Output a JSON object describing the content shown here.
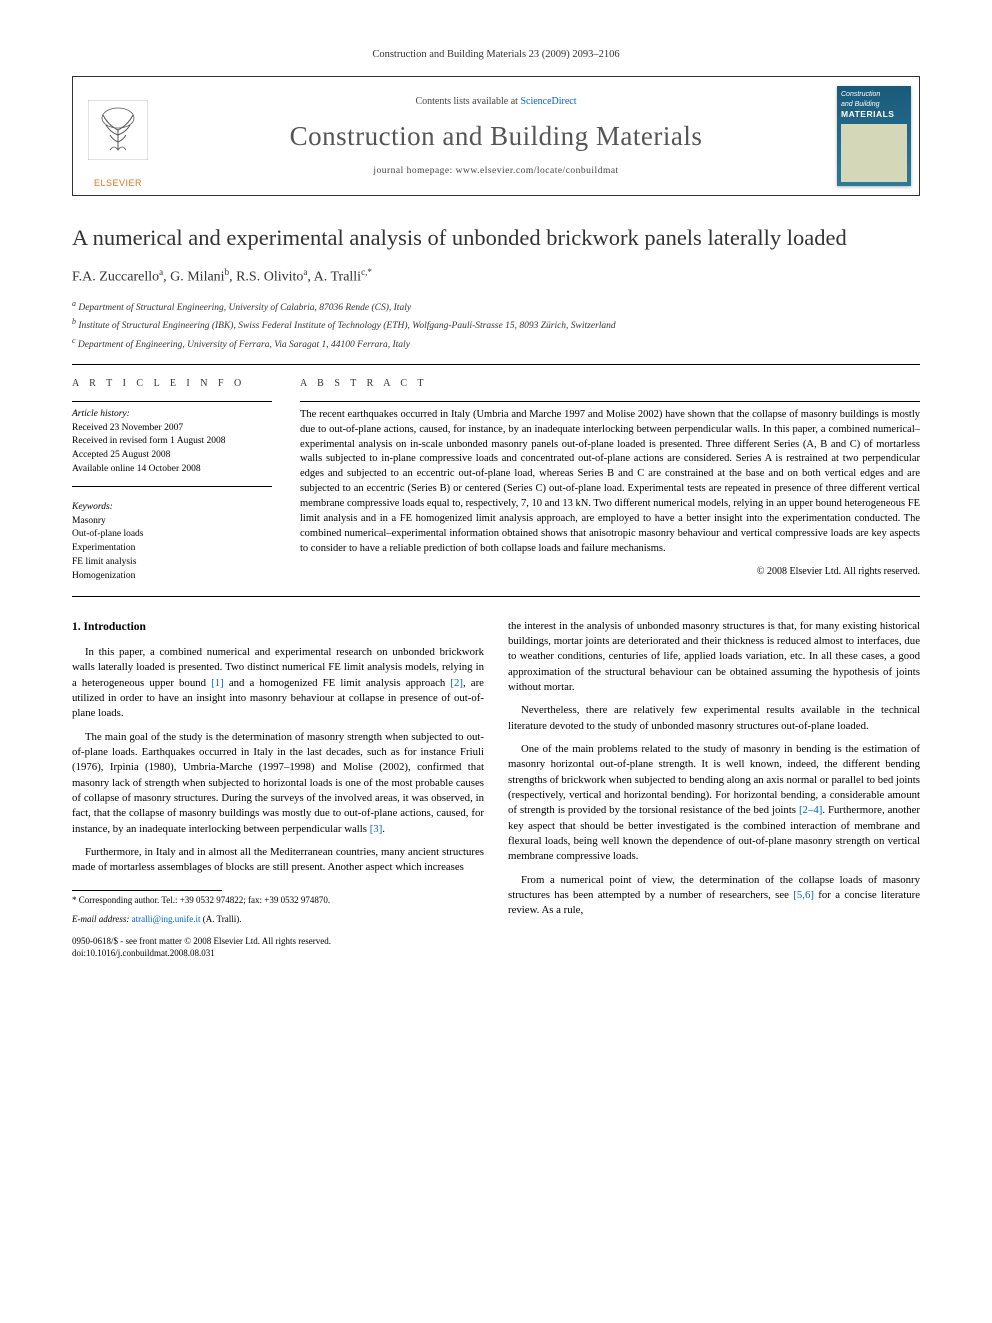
{
  "journal_ref": "Construction and Building Materials 23 (2009) 2093–2106",
  "header": {
    "contents_prefix": "Contents lists available at ",
    "contents_link": "ScienceDirect",
    "journal_title": "Construction and Building Materials",
    "homepage": "journal homepage: www.elsevier.com/locate/conbuildmat",
    "publisher_logo_text": "ELSEVIER",
    "cover": {
      "line1": "Construction",
      "line2": "and Building",
      "line3": "MATERIALS"
    }
  },
  "article": {
    "title": "A numerical and experimental analysis of unbonded brickwork panels laterally loaded",
    "authors_html": "F.A. Zuccarello",
    "authors": [
      {
        "name": "F.A. Zuccarello",
        "sup": "a"
      },
      {
        "name": "G. Milani",
        "sup": "b"
      },
      {
        "name": "R.S. Olivito",
        "sup": "a"
      },
      {
        "name": "A. Tralli",
        "sup": "c,*"
      }
    ],
    "affiliations": [
      "a Department of Structural Engineering, University of Calabria, 87036 Rende (CS), Italy",
      "b Institute of Structural Engineering (IBK), Swiss Federal Institute of Technology (ETH), Wolfgang-Pauli-Strasse 15, 8093 Zürich, Switzerland",
      "c Department of Engineering, University of Ferrara, Via Saragat 1, 44100 Ferrara, Italy"
    ]
  },
  "info": {
    "heading": "A R T I C L E   I N F O",
    "history_head": "Article history:",
    "history": [
      "Received 23 November 2007",
      "Received in revised form 1 August 2008",
      "Accepted 25 August 2008",
      "Available online 14 October 2008"
    ],
    "keywords_head": "Keywords:",
    "keywords": [
      "Masonry",
      "Out-of-plane loads",
      "Experimentation",
      "FE limit analysis",
      "Homogenization"
    ]
  },
  "abstract": {
    "heading": "A B S T R A C T",
    "text": "The recent earthquakes occurred in Italy (Umbria and Marche 1997 and Molise 2002) have shown that the collapse of masonry buildings is mostly due to out-of-plane actions, caused, for instance, by an inadequate interlocking between perpendicular walls. In this paper, a combined numerical–experimental analysis on in-scale unbonded masonry panels out-of-plane loaded is presented. Three different Series (A, B and C) of mortarless walls subjected to in-plane compressive loads and concentrated out-of-plane actions are considered. Series A is restrained at two perpendicular edges and subjected to an eccentric out-of-plane load, whereas Series B and C are constrained at the base and on both vertical edges and are subjected to an eccentric (Series B) or centered (Series C) out-of-plane load. Experimental tests are repeated in presence of three different vertical membrane compressive loads equal to, respectively, 7, 10 and 13 kN. Two different numerical models, relying in an upper bound heterogeneous FE limit analysis and in a FE homogenized limit analysis approach, are employed to have a better insight into the experimentation conducted. The combined numerical–experimental information obtained shows that anisotropic masonry behaviour and vertical compressive loads are key aspects to consider to have a reliable prediction of both collapse loads and failure mechanisms.",
    "copyright": "© 2008 Elsevier Ltd. All rights reserved."
  },
  "body": {
    "section_title": "1. Introduction",
    "p1": "In this paper, a combined numerical and experimental research on unbonded brickwork walls laterally loaded is presented. Two distinct numerical FE limit analysis models, relying in a heterogeneous upper bound [1] and a homogenized FE limit analysis approach [2], are utilized in order to have an insight into masonry behaviour at collapse in presence of out-of-plane loads.",
    "p2": "The main goal of the study is the determination of masonry strength when subjected to out-of-plane loads. Earthquakes occurred in Italy in the last decades, such as for instance Friuli (1976), Irpinia (1980), Umbria-Marche (1997–1998) and Molise (2002), confirmed that masonry lack of strength when subjected to horizontal loads is one of the most probable causes of collapse of masonry structures. During the surveys of the involved areas, it was observed, in fact, that the collapse of masonry buildings was mostly due to out-of-plane actions, caused, for instance, by an inadequate interlocking between perpendicular walls [3].",
    "p3": "Furthermore, in Italy and in almost all the Mediterranean countries, many ancient structures made of mortarless assemblages of blocks are still present. Another aspect which increases",
    "p4": "the interest in the analysis of unbonded masonry structures is that, for many existing historical buildings, mortar joints are deteriorated and their thickness is reduced almost to interfaces, due to weather conditions, centuries of life, applied loads variation, etc. In all these cases, a good approximation of the structural behaviour can be obtained assuming the hypothesis of joints without mortar.",
    "p5": "Nevertheless, there are relatively few experimental results available in the technical literature devoted to the study of unbonded masonry structures out-of-plane loaded.",
    "p6": "One of the main problems related to the study of masonry in bending is the estimation of masonry horizontal out-of-plane strength. It is well known, indeed, the different bending strengths of brickwork when subjected to bending along an axis normal or parallel to bed joints (respectively, vertical and horizontal bending). For horizontal bending, a considerable amount of strength is provided by the torsional resistance of the bed joints [2–4]. Furthermore, another key aspect that should be better investigated is the combined interaction of membrane and flexural loads, being well known the dependence of out-of-plane masonry strength on vertical membrane compressive loads.",
    "p7": "From a numerical point of view, the determination of the collapse loads of masonry structures has been attempted by a number of researchers, see [5,6] for a concise literature review. As a rule,"
  },
  "footnote": {
    "corr": "* Corresponding author. Tel.: +39 0532 974822; fax: +39 0532 974870.",
    "email_label": "E-mail address:",
    "email": "atralli@ing.unife.it",
    "email_suffix": "(A. Tralli)."
  },
  "pub_footer": {
    "line1": "0950-0618/$ - see front matter © 2008 Elsevier Ltd. All rights reserved.",
    "line2": "doi:10.1016/j.conbuildmat.2008.08.031"
  },
  "colors": {
    "link": "#0066cc",
    "elsevier_orange": "#e9711c",
    "cover_bg_top": "#1a5a7a",
    "cover_bg_bot": "#2a7a9a",
    "text": "#000000",
    "muted": "#333333"
  },
  "typography": {
    "body_pt": 10.8,
    "abstract_pt": 10.5,
    "title_pt": 22.5,
    "journal_title_pt": 27,
    "info_pt": 9.5,
    "footnote_pt": 9
  }
}
